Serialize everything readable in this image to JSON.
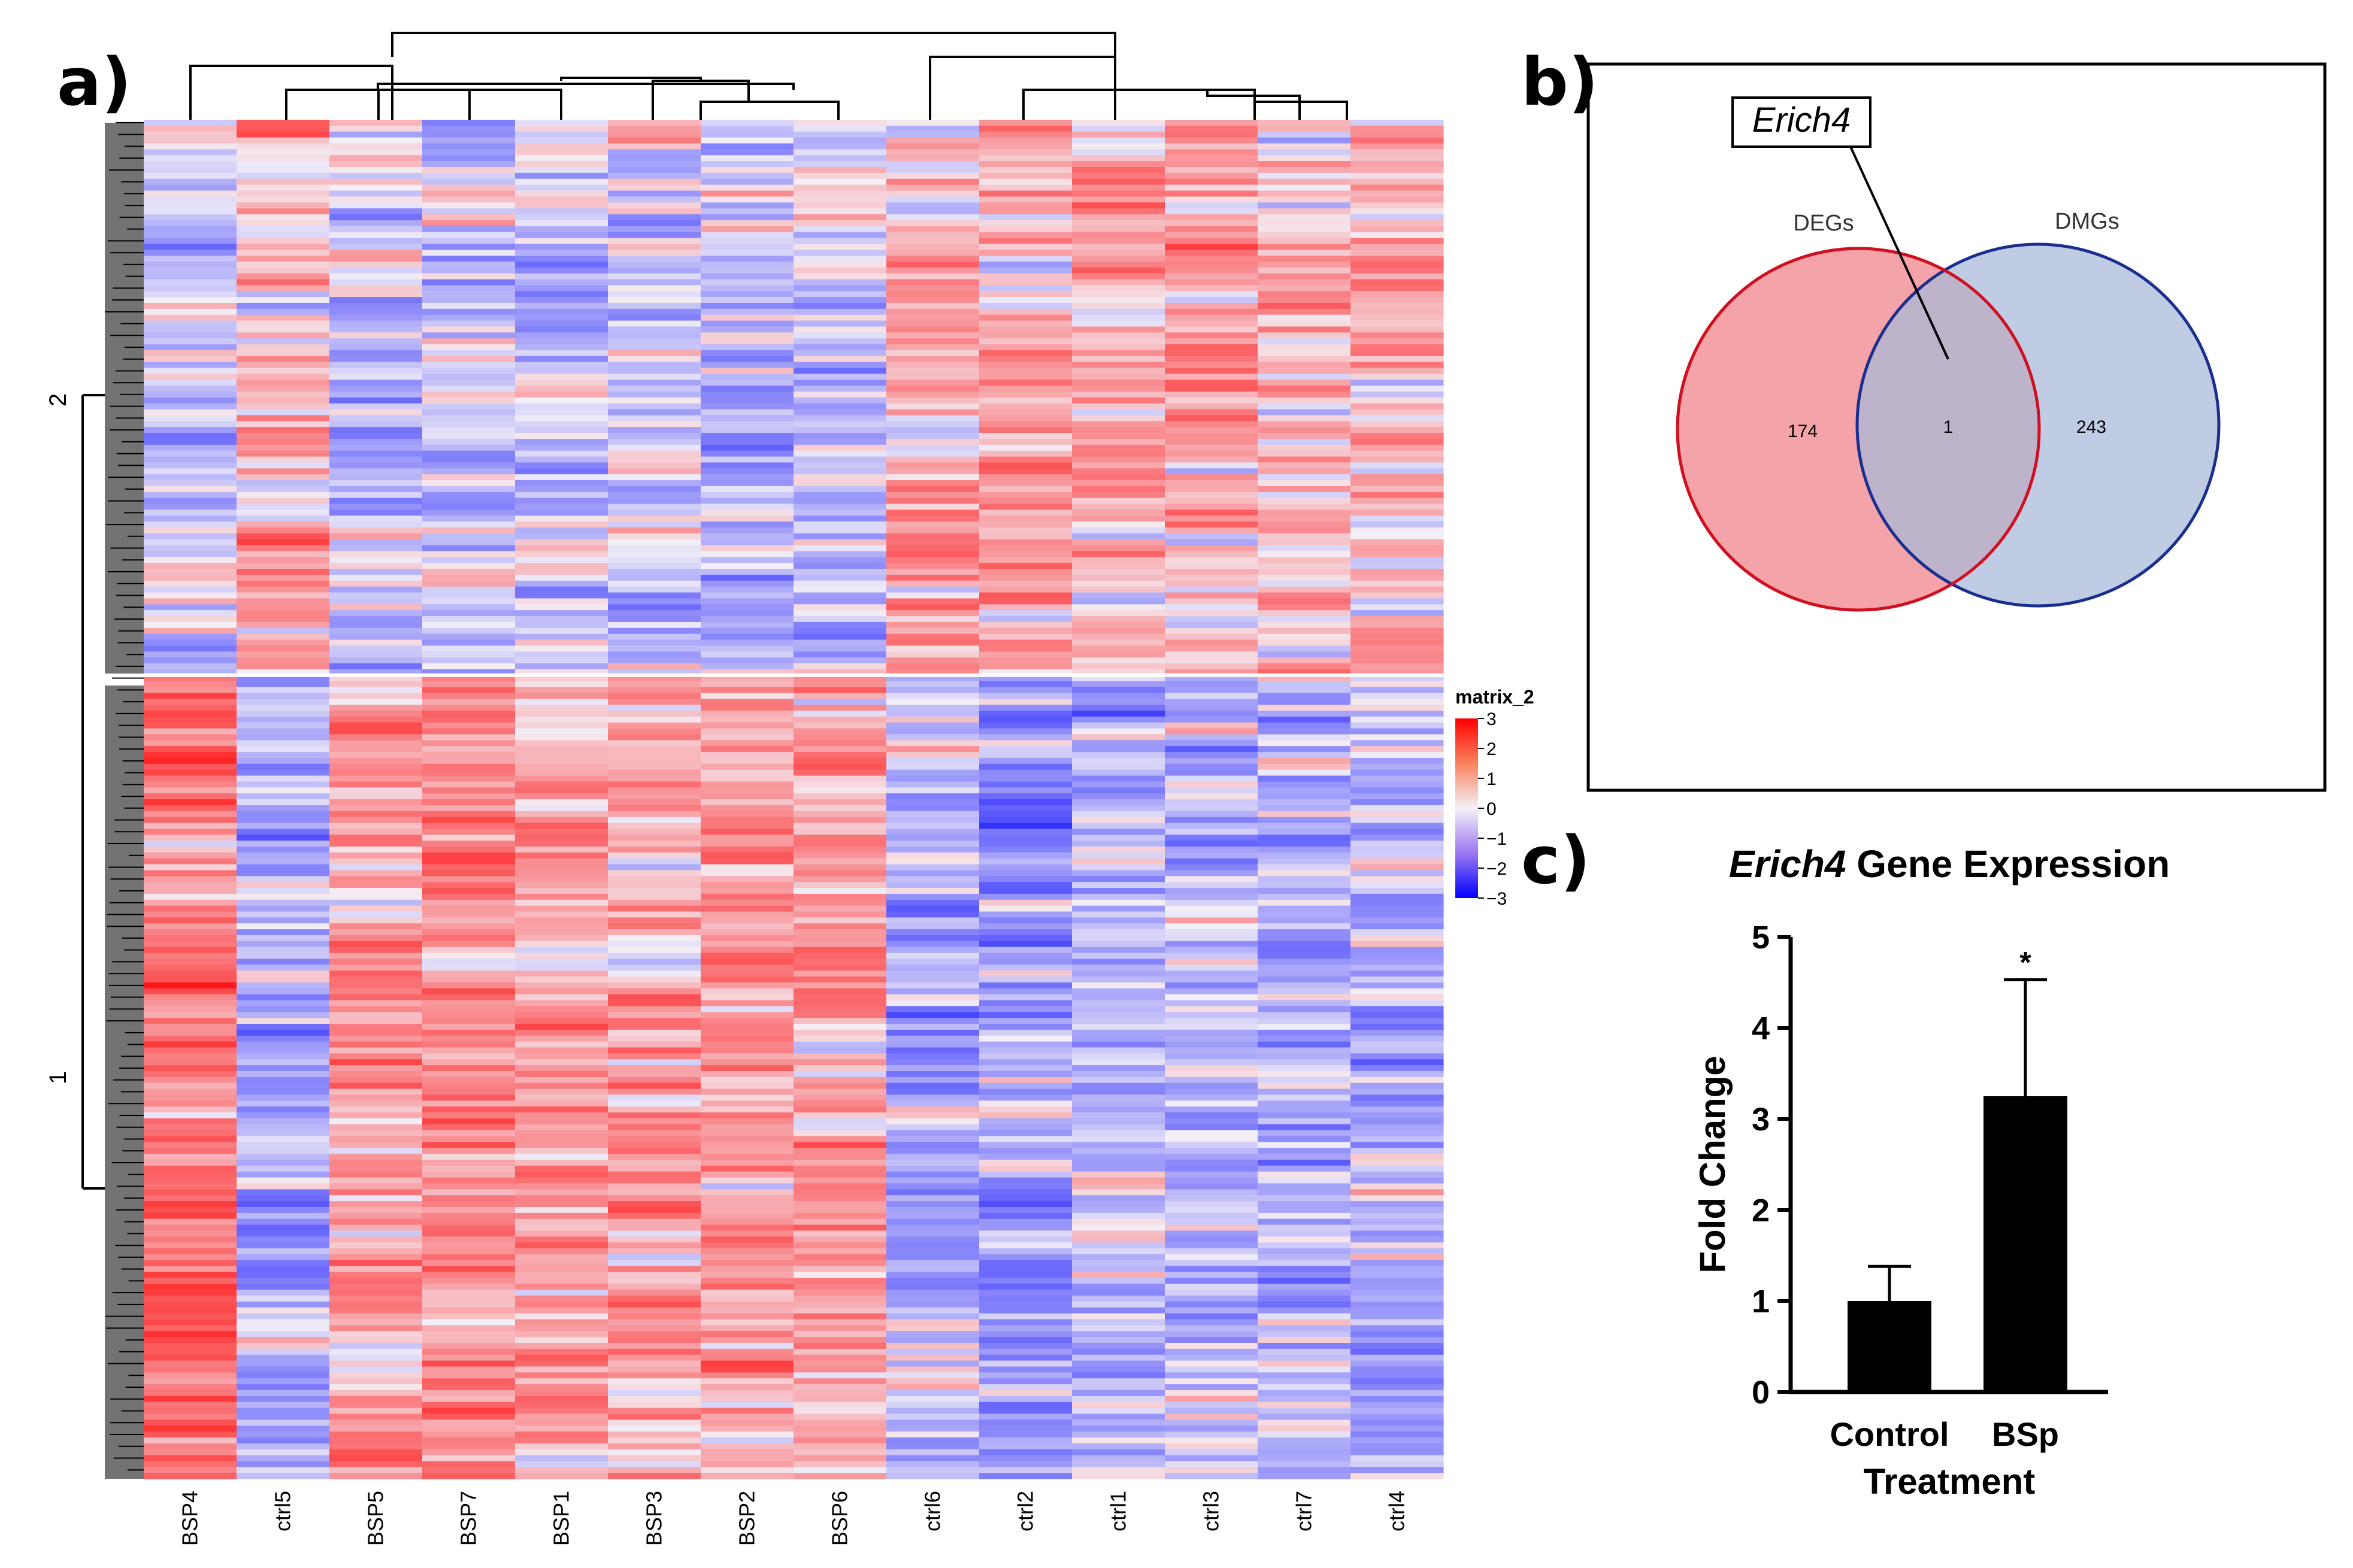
{
  "panels": {
    "a": "a)",
    "b": "b)",
    "c": "c)"
  },
  "heatmap": {
    "columns": [
      "BSP4",
      "ctrl5",
      "BSP5",
      "BSP7",
      "BSP1",
      "BSP3",
      "BSP2",
      "BSP6",
      "ctrl6",
      "ctrl2",
      "ctrl1",
      "ctrl3",
      "ctrl7",
      "ctrl4"
    ],
    "row_clusters": [
      "2",
      "1"
    ],
    "legend": {
      "title": "matrix_2",
      "ticks": [
        "3",
        "2",
        "1",
        "0",
        "−1",
        "−2",
        "−3"
      ],
      "high_color": "#ff0000",
      "mid_color": "#f4f0f7",
      "low_color": "#0000ff"
    }
  },
  "venn": {
    "gene_label": "Erich4",
    "sets": [
      {
        "name": "DEGs",
        "count": "174",
        "fill": "#f4a4a8",
        "stroke": "#d01020"
      },
      {
        "name": "DMGs",
        "count": "243",
        "fill": "#a8b8d8",
        "stroke": "#1a2e90"
      }
    ],
    "overlap_count": "1"
  },
  "chart_data": {
    "type": "bar",
    "title_gene": "Erich4",
    "title_rest": " Gene Expression",
    "categories": [
      "Control",
      "BSp"
    ],
    "values": [
      1.0,
      3.25
    ],
    "error_upper": [
      1.38,
      4.53
    ],
    "significance": [
      "",
      "*"
    ],
    "xlabel": "Treatment",
    "ylabel": "Fold Change",
    "ylim": [
      0,
      5
    ],
    "yticks": [
      "0",
      "1",
      "2",
      "3",
      "4",
      "5"
    ],
    "bar_color": "#000000"
  }
}
